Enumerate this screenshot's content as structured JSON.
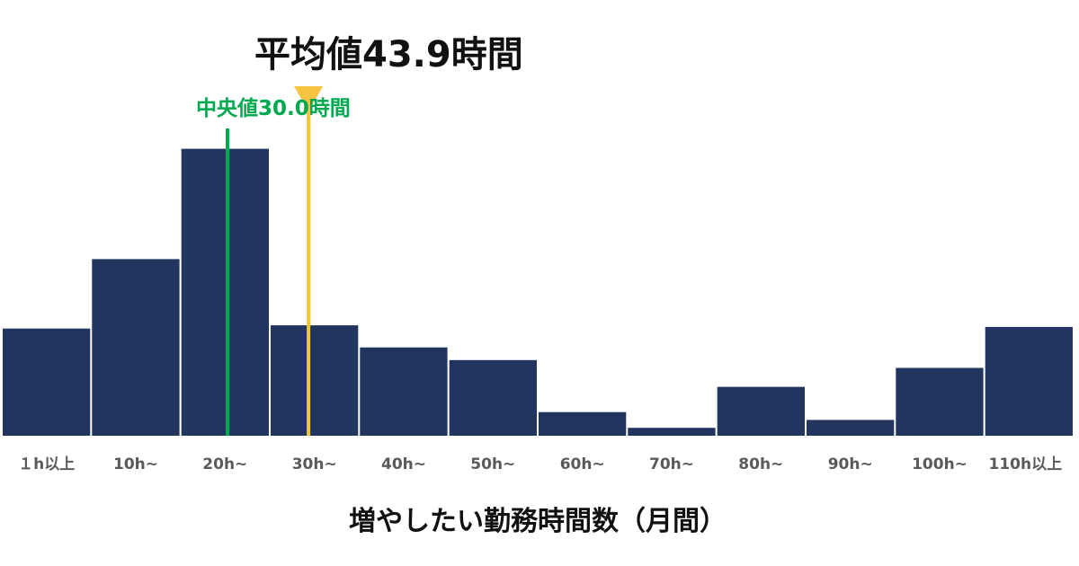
{
  "chart_data": {
    "type": "bar",
    "categories": [
      "１h以上",
      "10h~",
      "20h~",
      "30h~",
      "40h~",
      "50h~",
      "60h~",
      "70h~",
      "80h~",
      "90h~",
      "100h~",
      "110h以上"
    ],
    "values": [
      34,
      56,
      91,
      35,
      28,
      24,
      7.5,
      2.5,
      15.5,
      5,
      21.5,
      34.5
    ],
    "xlabel": "増やしたい勤務時間数（月間）",
    "ylabel": "",
    "ylim": [
      0,
      100
    ],
    "grid": false,
    "legend": "none",
    "bar_color": "#21355f",
    "annotations": {
      "mean": {
        "label": "平均値43.9時間",
        "value": 43.9,
        "color": "#f5c242"
      },
      "median": {
        "label": "中央値30.0時間",
        "value": 30.0,
        "color": "#00a94f"
      }
    }
  }
}
